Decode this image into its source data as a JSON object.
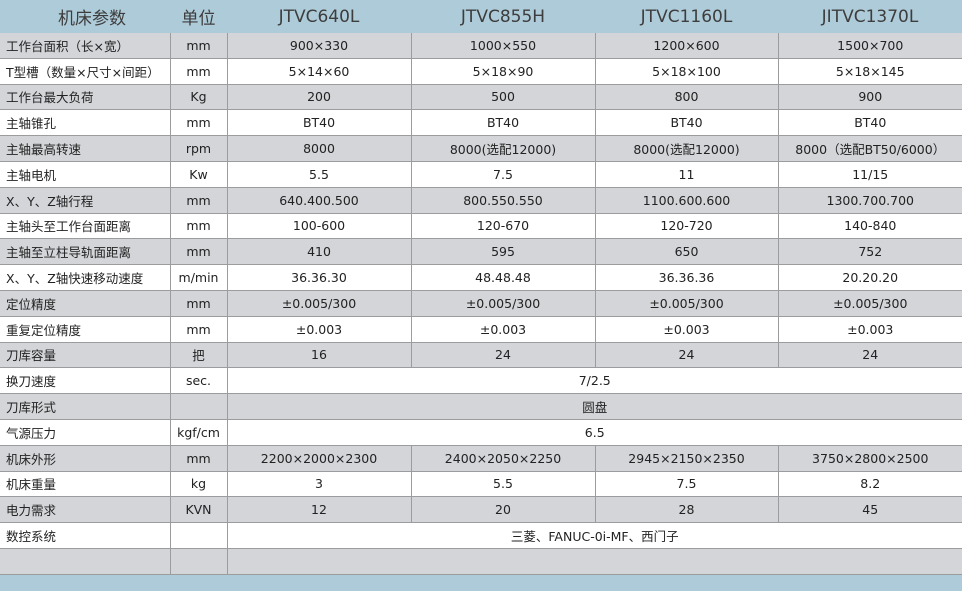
{
  "header": [
    "机床参数",
    "单位",
    "JTVC640L",
    "JTVC855H",
    "JTVC1160L",
    "JITVC1370L"
  ],
  "rows": [
    {
      "param": "工作台面积（长×宽）",
      "unit": "mm",
      "values": [
        "900×330",
        "1000×550",
        "1200×600",
        "1500×700"
      ]
    },
    {
      "param": "T型槽（数量×尺寸×间距）",
      "unit": "mm",
      "values": [
        "5×14×60",
        "5×18×90",
        "5×18×100",
        "5×18×145"
      ]
    },
    {
      "param": "工作台最大负荷",
      "unit": "Kg",
      "values": [
        "200",
        "500",
        "800",
        "900"
      ]
    },
    {
      "param": "主轴锥孔",
      "unit": "mm",
      "values": [
        "BT40",
        "BT40",
        "BT40",
        "BT40"
      ]
    },
    {
      "param": "主轴最高转速",
      "unit": "rpm",
      "values": [
        "8000",
        "8000(选配12000)",
        "8000(选配12000)",
        "8000（选配BT50/6000）"
      ]
    },
    {
      "param": "主轴电机",
      "unit": "Kw",
      "values": [
        "5.5",
        "7.5",
        "11",
        "11/15"
      ]
    },
    {
      "param": "X、Y、Z轴行程",
      "unit": "mm",
      "values": [
        "640.400.500",
        "800.550.550",
        "1100.600.600",
        "1300.700.700"
      ]
    },
    {
      "param": "主轴头至工作台面距离",
      "unit": "mm",
      "values": [
        "100-600",
        "120-670",
        "120-720",
        "140-840"
      ]
    },
    {
      "param": "主轴至立柱导轨面距离",
      "unit": "mm",
      "values": [
        "410",
        "595",
        "650",
        "752"
      ]
    },
    {
      "param": "X、Y、Z轴快速移动速度",
      "unit": "m/min",
      "values": [
        "36.36.30",
        "48.48.48",
        "36.36.36",
        "20.20.20"
      ]
    },
    {
      "param": "定位精度",
      "unit": "mm",
      "values": [
        "±0.005/300",
        "±0.005/300",
        "±0.005/300",
        "±0.005/300"
      ]
    },
    {
      "param": "重复定位精度",
      "unit": "mm",
      "values": [
        "±0.003",
        "±0.003",
        "±0.003",
        "±0.003"
      ]
    },
    {
      "param": "刀库容量",
      "unit": "把",
      "values": [
        "16",
        "24",
        "24",
        "24"
      ]
    },
    {
      "param": "换刀速度",
      "unit": "sec.",
      "values": [
        "7/2.5"
      ]
    },
    {
      "param": "刀库形式",
      "unit": "",
      "values": [
        "圆盘"
      ]
    },
    {
      "param": "气源压力",
      "unit": "kgf/cm",
      "values": [
        "6.5"
      ]
    },
    {
      "param": "机床外形",
      "unit": "mm",
      "values": [
        "2200×2000×2300",
        "2400×2050×2250",
        "2945×2150×2350",
        "3750×2800×2500"
      ]
    },
    {
      "param": "机床重量",
      "unit": "kg",
      "values": [
        "3",
        "5.5",
        "7.5",
        "8.2"
      ]
    },
    {
      "param": "电力需求",
      "unit": "KVN",
      "values": [
        "12",
        "20",
        "28",
        "45"
      ]
    },
    {
      "param": "数控系统",
      "unit": "",
      "values": [
        "三菱、FANUC-0i-MF、西门子"
      ]
    },
    {
      "param": "",
      "unit": "",
      "values": [
        ""
      ]
    }
  ]
}
